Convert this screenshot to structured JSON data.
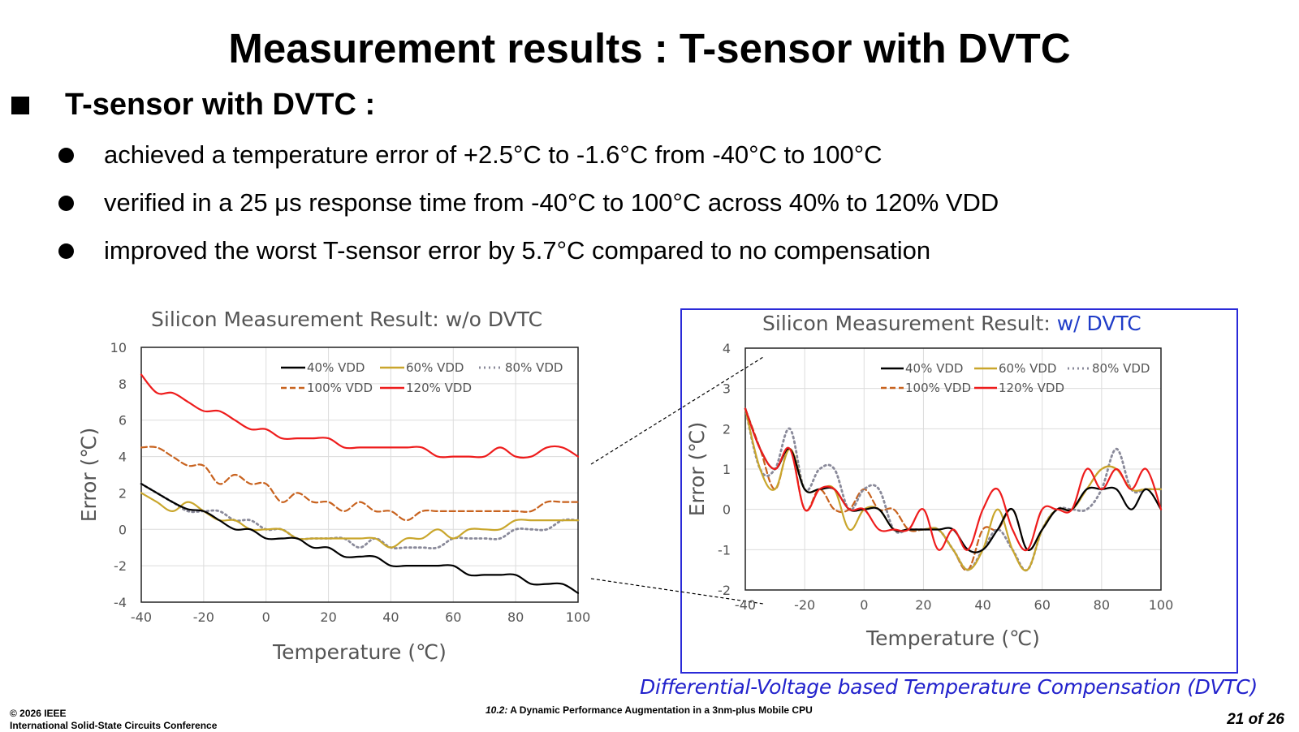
{
  "slide": {
    "title": "Measurement results : T-sensor with DVTC",
    "heading": "T-sensor with DVTC :",
    "bullets": [
      "achieved a temperature error of +2.5°C to -1.6°C from -40°C to 100°C",
      "verified in a 25 μs response time from -40°C to 100°C across 40% to 120% VDD",
      "improved the worst T-sensor error by 5.7°C compared to no compensation"
    ],
    "caption": "Differential-Voltage based Temperature Compensation (DVTC)"
  },
  "footer": {
    "copyright": "© 2026 IEEE",
    "conference": "International Solid-State Circuits Conference",
    "session": "10.2:",
    "paper_title": "A Dynamic Performance Augmentation in a 3nm-plus Mobile CPU",
    "page": "21 of 26"
  },
  "chart_data": [
    {
      "type": "line",
      "title": "Silicon Measurement Result: w/o DVTC",
      "title_parts": [
        "Silicon Measurement Result: ",
        "w/o DVTC"
      ],
      "title_colors": [
        "#555555",
        "#555555"
      ],
      "xlabel": "Temperature (℃)",
      "ylabel": "Error (℃)",
      "xlim": [
        -40,
        100
      ],
      "ylim": [
        -4,
        10
      ],
      "xticks": [
        -40,
        -20,
        0,
        20,
        40,
        60,
        80,
        100
      ],
      "yticks": [
        -4,
        -2,
        0,
        2,
        4,
        6,
        8,
        10
      ],
      "grid": true,
      "legend_position": "top-right",
      "series": [
        {
          "name": "40% VDD",
          "color": "#000000",
          "dash": "solid",
          "x": [
            -40,
            -35,
            -30,
            -25,
            -20,
            -15,
            -10,
            -5,
            0,
            5,
            10,
            15,
            20,
            25,
            30,
            35,
            40,
            45,
            50,
            55,
            60,
            65,
            70,
            75,
            80,
            85,
            90,
            95,
            100
          ],
          "y": [
            2.5,
            2.0,
            1.5,
            1.1,
            1.0,
            0.5,
            0.0,
            0.0,
            -0.5,
            -0.5,
            -0.5,
            -1.0,
            -1.0,
            -1.5,
            -1.5,
            -1.5,
            -2.0,
            -2.0,
            -2.0,
            -2.0,
            -2.0,
            -2.5,
            -2.5,
            -2.5,
            -2.5,
            -3.0,
            -3.0,
            -3.0,
            -3.5
          ]
        },
        {
          "name": "60% VDD",
          "color": "#c9a62c",
          "dash": "solid",
          "x": [
            -40,
            -35,
            -30,
            -25,
            -20,
            -15,
            -10,
            -5,
            0,
            5,
            10,
            15,
            20,
            25,
            30,
            35,
            40,
            45,
            50,
            55,
            60,
            65,
            70,
            75,
            80,
            85,
            90,
            95,
            100
          ],
          "y": [
            2.0,
            1.5,
            1.0,
            1.5,
            1.0,
            0.5,
            0.5,
            0.0,
            0.0,
            0.0,
            -0.5,
            -0.5,
            -0.5,
            -0.5,
            -0.5,
            -0.5,
            -1.0,
            -0.5,
            -0.5,
            0.0,
            -0.5,
            0.0,
            0.0,
            0.0,
            0.5,
            0.5,
            0.5,
            0.5,
            0.5
          ]
        },
        {
          "name": "80% VDD",
          "color": "#8a8a9a",
          "dash": "dot",
          "x": [
            -40,
            -35,
            -30,
            -25,
            -20,
            -15,
            -10,
            -5,
            0,
            5,
            10,
            15,
            20,
            25,
            30,
            35,
            40,
            45,
            50,
            55,
            60,
            65,
            70,
            75,
            80,
            85,
            90,
            95,
            100
          ],
          "y": [
            2.5,
            2.0,
            1.5,
            1.0,
            1.0,
            1.0,
            0.5,
            0.5,
            0.0,
            0.0,
            -0.5,
            -0.5,
            -0.5,
            -0.5,
            -1.0,
            -0.5,
            -1.0,
            -1.0,
            -1.0,
            -1.0,
            -0.5,
            -0.5,
            -0.5,
            -0.5,
            0.0,
            0.0,
            0.0,
            0.5,
            0.5
          ]
        },
        {
          "name": "100% VDD",
          "color": "#c8621e",
          "dash": "dash",
          "x": [
            -40,
            -35,
            -30,
            -25,
            -20,
            -15,
            -10,
            -5,
            0,
            5,
            10,
            15,
            20,
            25,
            30,
            35,
            40,
            45,
            50,
            55,
            60,
            65,
            70,
            75,
            80,
            85,
            90,
            95,
            100
          ],
          "y": [
            4.5,
            4.5,
            4.0,
            3.5,
            3.5,
            2.5,
            3.0,
            2.5,
            2.5,
            1.5,
            2.0,
            1.5,
            1.5,
            1.0,
            1.5,
            1.0,
            1.0,
            0.5,
            1.0,
            1.0,
            1.0,
            1.0,
            1.0,
            1.0,
            1.0,
            1.0,
            1.5,
            1.5,
            1.5
          ]
        },
        {
          "name": "120% VDD",
          "color": "#ee1c1c",
          "dash": "solid",
          "x": [
            -40,
            -35,
            -30,
            -25,
            -20,
            -15,
            -10,
            -5,
            0,
            5,
            10,
            15,
            20,
            25,
            30,
            35,
            40,
            45,
            50,
            55,
            60,
            65,
            70,
            75,
            80,
            85,
            90,
            95,
            100
          ],
          "y": [
            8.5,
            7.5,
            7.5,
            7.0,
            6.5,
            6.5,
            6.0,
            5.5,
            5.5,
            5.0,
            5.0,
            5.0,
            5.0,
            4.5,
            4.5,
            4.5,
            4.5,
            4.5,
            4.5,
            4.0,
            4.0,
            4.0,
            4.0,
            4.5,
            4.0,
            4.0,
            4.5,
            4.5,
            4.0
          ]
        }
      ]
    },
    {
      "type": "line",
      "title": "Silicon Measurement Result: w/ DVTC",
      "title_parts": [
        "Silicon Measurement Result: ",
        "w/ DVTC"
      ],
      "title_colors": [
        "#555555",
        "#1f3cc8"
      ],
      "xlabel": "Temperature (℃)",
      "ylabel": "Error (℃)",
      "xlim": [
        -40,
        100
      ],
      "ylim": [
        -2,
        4
      ],
      "xticks": [
        -40,
        -20,
        0,
        20,
        40,
        60,
        80,
        100
      ],
      "yticks": [
        -2,
        -1,
        0,
        1,
        2,
        3,
        4
      ],
      "grid": true,
      "legend_position": "top-right",
      "series": [
        {
          "name": "40% VDD",
          "color": "#000000",
          "dash": "solid",
          "x": [
            -40,
            -35,
            -30,
            -25,
            -20,
            -15,
            -10,
            -5,
            0,
            5,
            10,
            15,
            20,
            25,
            30,
            35,
            40,
            45,
            50,
            55,
            60,
            65,
            70,
            75,
            80,
            85,
            90,
            95,
            100
          ],
          "y": [
            2.5,
            1.5,
            1.0,
            1.5,
            0.5,
            0.5,
            0.5,
            0.0,
            0.0,
            0.0,
            -0.5,
            -0.5,
            -0.5,
            -0.5,
            -0.5,
            -1.0,
            -1.0,
            -0.5,
            0.0,
            -1.0,
            -0.5,
            0.0,
            0.0,
            0.5,
            0.5,
            0.5,
            0.0,
            0.5,
            0.0
          ]
        },
        {
          "name": "60% VDD",
          "color": "#c9a62c",
          "dash": "solid",
          "x": [
            -40,
            -35,
            -30,
            -25,
            -20,
            -15,
            -10,
            -5,
            0,
            5,
            10,
            15,
            20,
            25,
            30,
            35,
            40,
            45,
            50,
            55,
            60,
            65,
            70,
            75,
            80,
            85,
            90,
            95,
            100
          ],
          "y": [
            2.5,
            1.0,
            0.5,
            1.5,
            0.5,
            0.5,
            0.5,
            -0.5,
            0.0,
            0.0,
            -0.5,
            -0.5,
            -0.5,
            -0.5,
            -1.0,
            -1.5,
            -1.0,
            0.0,
            -1.0,
            -1.5,
            -0.5,
            0.0,
            0.0,
            0.5,
            1.0,
            1.0,
            0.5,
            0.5,
            0.5
          ]
        },
        {
          "name": "80% VDD",
          "color": "#8a8a9a",
          "dash": "dot",
          "x": [
            -40,
            -35,
            -30,
            -25,
            -20,
            -15,
            -10,
            -5,
            0,
            5,
            10,
            15,
            20,
            25,
            30,
            35,
            40,
            45,
            50,
            55,
            60,
            65,
            70,
            75,
            80,
            85,
            90,
            95,
            100
          ],
          "y": [
            2.5,
            1.0,
            1.0,
            2.0,
            0.5,
            1.0,
            1.0,
            0.0,
            0.5,
            0.5,
            -0.5,
            -0.5,
            -0.5,
            -0.5,
            -1.0,
            -1.5,
            -1.0,
            -0.5,
            -1.0,
            -1.5,
            -0.5,
            0.0,
            0.0,
            0.0,
            0.5,
            1.5,
            0.5,
            0.5,
            0.5
          ]
        },
        {
          "name": "100% VDD",
          "color": "#c8621e",
          "dash": "dash",
          "x": [
            -40,
            -35,
            -30,
            -25,
            -20,
            -15,
            -10,
            -5,
            0,
            5,
            10,
            15,
            20,
            25,
            30,
            35,
            40,
            45,
            50,
            55,
            60,
            65,
            70,
            75,
            80,
            85,
            90,
            95,
            100
          ],
          "y": [
            2.5,
            1.5,
            0.5,
            1.5,
            0.0,
            0.5,
            0.0,
            0.0,
            0.5,
            0.0,
            0.0,
            -0.5,
            -0.5,
            -0.5,
            -1.0,
            -1.5,
            -0.5,
            -0.5,
            0.0,
            -1.0,
            -0.5,
            0.0,
            0.0,
            0.5,
            1.0,
            1.0,
            0.5,
            0.5,
            0.5
          ]
        },
        {
          "name": "120% VDD",
          "color": "#ee1c1c",
          "dash": "solid",
          "x": [
            -40,
            -35,
            -30,
            -25,
            -20,
            -15,
            -10,
            -5,
            0,
            5,
            10,
            15,
            20,
            25,
            30,
            35,
            40,
            45,
            50,
            55,
            60,
            65,
            70,
            75,
            80,
            85,
            90,
            95,
            100
          ],
          "y": [
            2.5,
            1.5,
            1.0,
            1.5,
            0.0,
            0.5,
            0.5,
            0.0,
            0.0,
            -0.5,
            -0.5,
            -0.5,
            0.0,
            -1.0,
            -0.5,
            -1.0,
            0.0,
            0.5,
            -0.5,
            -1.0,
            0.0,
            0.0,
            0.0,
            1.0,
            0.5,
            1.0,
            0.5,
            1.0,
            0.0
          ]
        }
      ]
    }
  ]
}
